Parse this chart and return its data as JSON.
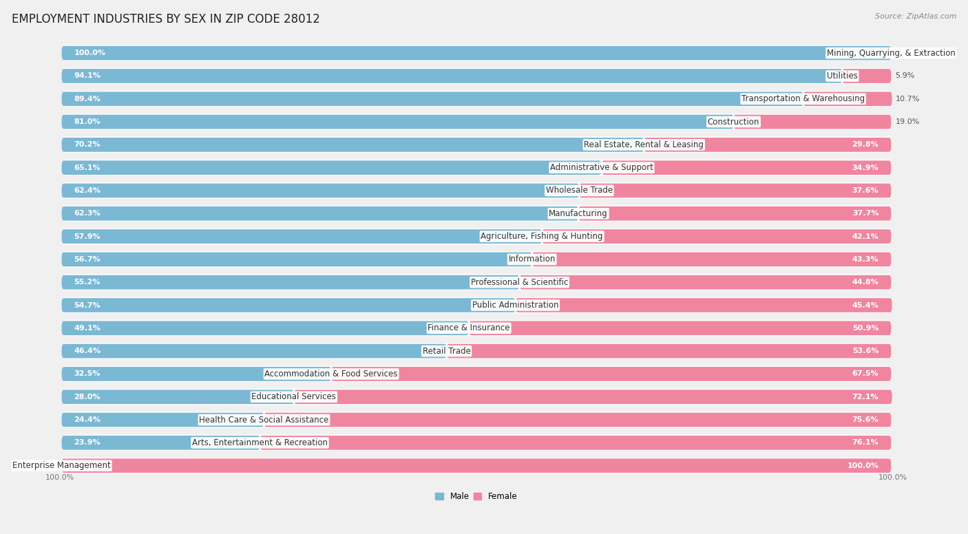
{
  "title": "EMPLOYMENT INDUSTRIES BY SEX IN ZIP CODE 28012",
  "source": "Source: ZipAtlas.com",
  "categories": [
    "Mining, Quarrying, & Extraction",
    "Utilities",
    "Transportation & Warehousing",
    "Construction",
    "Real Estate, Rental & Leasing",
    "Administrative & Support",
    "Wholesale Trade",
    "Manufacturing",
    "Agriculture, Fishing & Hunting",
    "Information",
    "Professional & Scientific",
    "Public Administration",
    "Finance & Insurance",
    "Retail Trade",
    "Accommodation & Food Services",
    "Educational Services",
    "Health Care & Social Assistance",
    "Arts, Entertainment & Recreation",
    "Enterprise Management"
  ],
  "male": [
    100.0,
    94.1,
    89.4,
    81.0,
    70.2,
    65.1,
    62.4,
    62.3,
    57.9,
    56.7,
    55.2,
    54.7,
    49.1,
    46.4,
    32.5,
    28.0,
    24.4,
    23.9,
    0.0
  ],
  "female": [
    0.0,
    5.9,
    10.7,
    19.0,
    29.8,
    34.9,
    37.6,
    37.7,
    42.1,
    43.3,
    44.8,
    45.4,
    50.9,
    53.6,
    67.5,
    72.1,
    75.6,
    76.1,
    100.0
  ],
  "male_color": "#7BB8D4",
  "female_color": "#F085A0",
  "bg_color": "#F0F0F0",
  "row_bg_color": "#FFFFFF",
  "title_fontsize": 12,
  "label_fontsize": 8.5,
  "pct_fontsize": 8,
  "source_fontsize": 8
}
